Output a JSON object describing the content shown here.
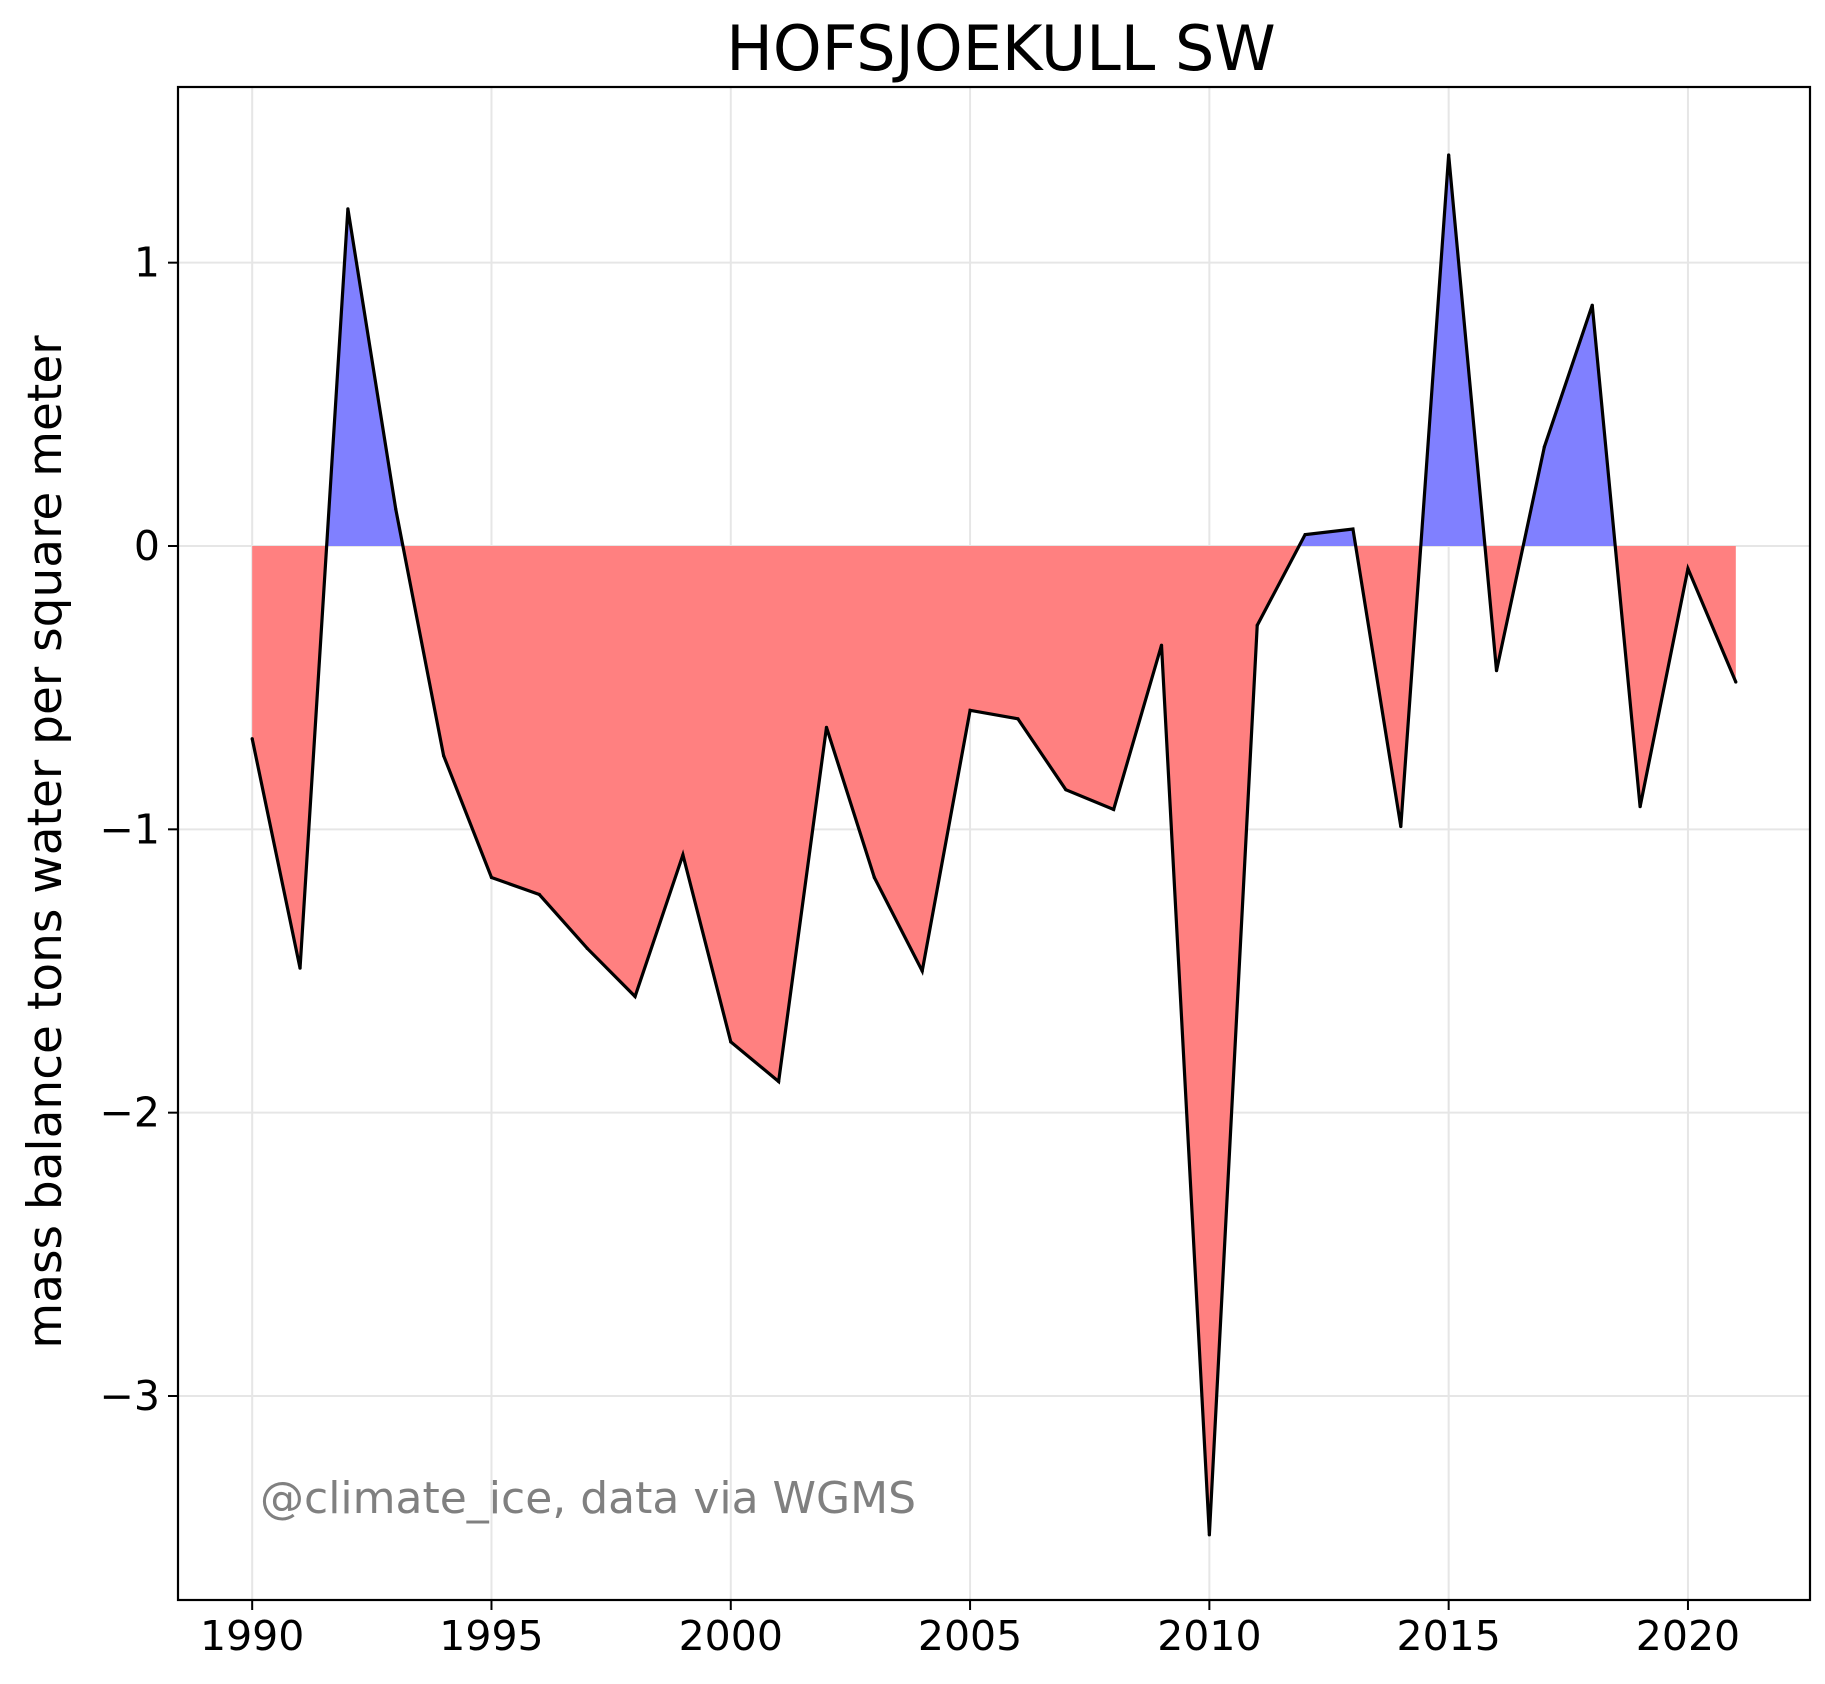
{
  "chart_data": {
    "type": "area",
    "title": "HOFSJOEKULL SW",
    "xlabel": "",
    "ylabel": "mass balance tons water per square meter",
    "annotation": "@climate_ice, data via WGMS",
    "xlim": [
      1988.45,
      2022.55
    ],
    "ylim": [
      -3.72,
      1.62
    ],
    "x_ticks": [
      1990,
      1995,
      2000,
      2005,
      2010,
      2015,
      2020
    ],
    "x_tick_labels": [
      "1990",
      "1995",
      "2000",
      "2005",
      "2010",
      "2015",
      "2020"
    ],
    "y_ticks": [
      1,
      0,
      -1,
      -2,
      -3
    ],
    "y_tick_labels": [
      "1",
      "0",
      "−1",
      "−2",
      "−3"
    ],
    "grid": true,
    "baseline": 0,
    "colors": {
      "positive_fill": "#8080ff",
      "negative_fill": "#ff8080",
      "line": "#000000",
      "grid": "#e6e6e6",
      "annotation": "#808080"
    },
    "x": [
      1990,
      1991,
      1992,
      1993,
      1994,
      1995,
      1996,
      1997,
      1998,
      1999,
      2000,
      2001,
      2002,
      2003,
      2004,
      2005,
      2006,
      2007,
      2008,
      2009,
      2010,
      2011,
      2012,
      2013,
      2014,
      2015,
      2016,
      2017,
      2018,
      2019,
      2020,
      2021
    ],
    "y": [
      -0.68,
      -1.49,
      1.19,
      0.13,
      -0.74,
      -1.17,
      -1.23,
      -1.42,
      -1.59,
      -1.09,
      -1.75,
      -1.89,
      -0.64,
      -1.17,
      -1.5,
      -0.58,
      -0.61,
      -0.86,
      -0.93,
      -0.35,
      -3.49,
      -0.28,
      0.04,
      0.06,
      -0.99,
      1.38,
      -0.44,
      0.35,
      0.85,
      -0.92,
      -0.08,
      -0.48
    ]
  }
}
